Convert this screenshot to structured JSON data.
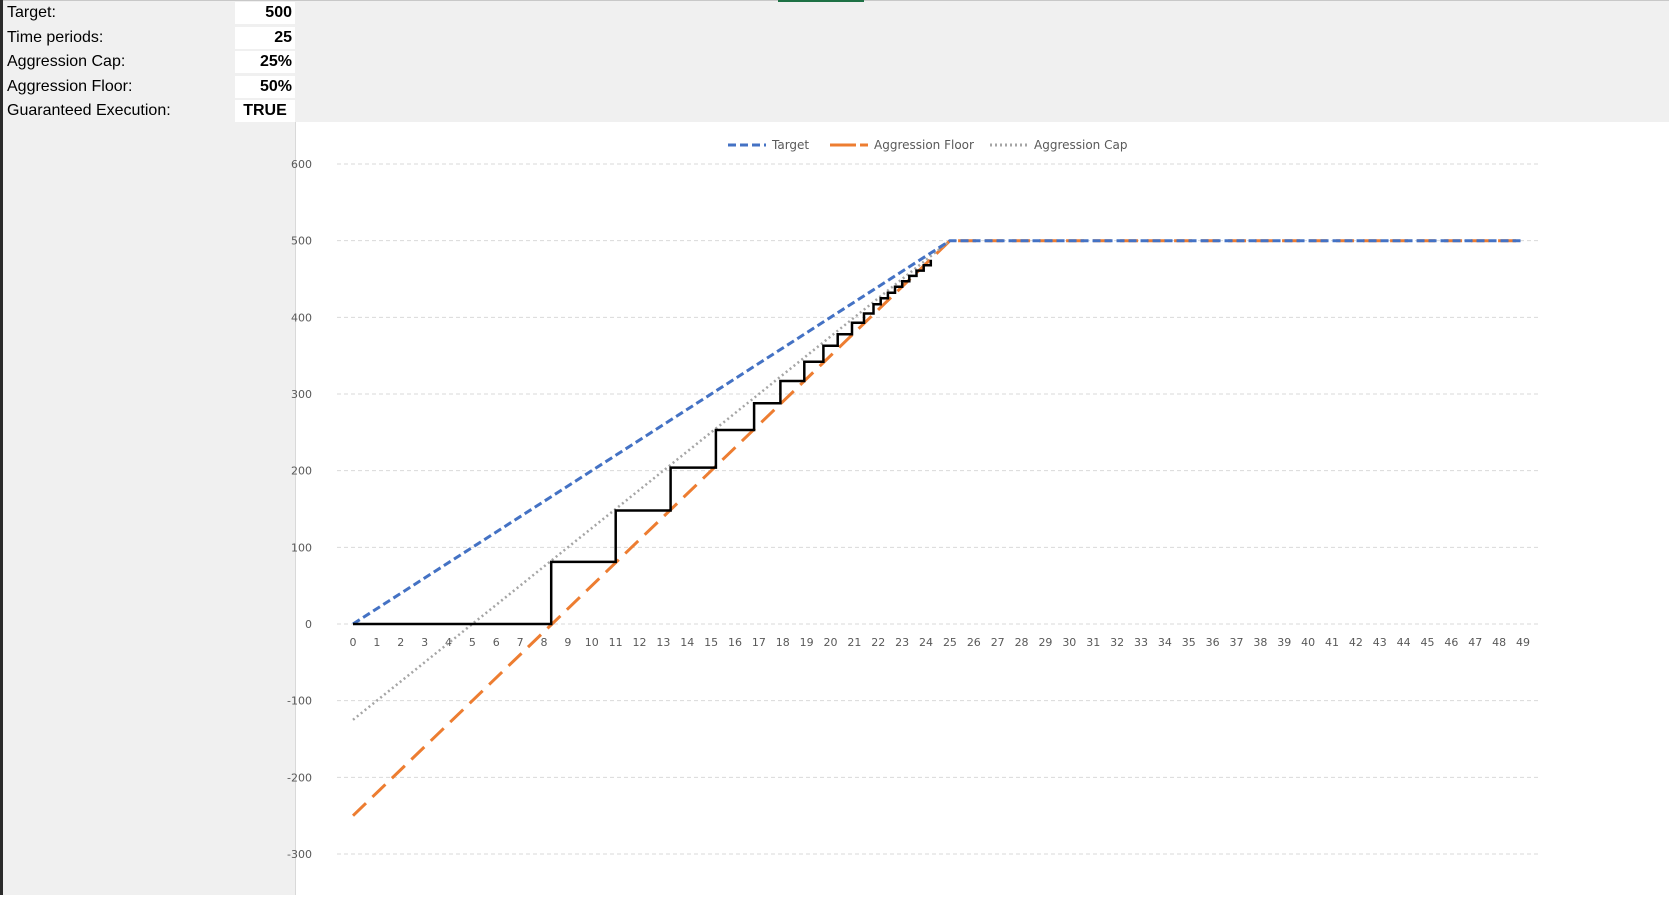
{
  "params": [
    {
      "label": "Target:",
      "value": "500"
    },
    {
      "label": "Time periods:",
      "value": "25"
    },
    {
      "label": "Aggression Cap:",
      "value": "25%"
    },
    {
      "label": "Aggression Floor:",
      "value": "50%"
    },
    {
      "label": "Guaranteed Execution:",
      "value": "TRUE"
    }
  ],
  "colors": {
    "target": "#4472c4",
    "floor": "#ed7d31",
    "cap": "#a5a5a5",
    "execution": "#000000",
    "grid": "#d9d9d9"
  },
  "chart_data": {
    "type": "line",
    "title": "",
    "xlabel": "",
    "ylabel": "",
    "ylim": [
      -300,
      600
    ],
    "yticks": [
      -300,
      -200,
      -100,
      0,
      100,
      200,
      300,
      400,
      500,
      600
    ],
    "xticks": [
      0,
      1,
      2,
      3,
      4,
      5,
      6,
      7,
      8,
      9,
      10,
      11,
      12,
      13,
      14,
      15,
      16,
      17,
      18,
      19,
      20,
      21,
      22,
      23,
      24,
      25,
      26,
      27,
      28,
      29,
      30,
      31,
      32,
      33,
      34,
      35,
      36,
      37,
      38,
      39,
      40,
      41,
      42,
      43,
      44,
      45,
      46,
      47,
      48,
      49
    ],
    "grid": "horizontal-dashed",
    "legend": "top",
    "legend_entries": [
      "Target",
      "Aggression Floor",
      "Aggression Cap"
    ],
    "series": [
      {
        "name": "Target",
        "style": "dashed",
        "points": [
          [
            0,
            0
          ],
          [
            25,
            500
          ],
          [
            49,
            500
          ]
        ]
      },
      {
        "name": "Aggression Floor",
        "style": "long-dashed",
        "points": [
          [
            0,
            -250
          ],
          [
            25,
            500
          ],
          [
            49,
            500
          ]
        ]
      },
      {
        "name": "Aggression Cap",
        "style": "dotted",
        "points": [
          [
            0,
            -125
          ],
          [
            25,
            500
          ]
        ]
      },
      {
        "style": "step",
        "points": [
          [
            0,
            0
          ],
          [
            8.3,
            0
          ],
          [
            8.3,
            81
          ],
          [
            11,
            81
          ],
          [
            11,
            148
          ],
          [
            13.3,
            148
          ],
          [
            13.3,
            204
          ],
          [
            15.2,
            204
          ],
          [
            15.2,
            253
          ],
          [
            16.8,
            253
          ],
          [
            16.8,
            288
          ],
          [
            17.9,
            288
          ],
          [
            17.9,
            317
          ],
          [
            18.9,
            317
          ],
          [
            18.9,
            342
          ],
          [
            19.7,
            342
          ],
          [
            19.7,
            363
          ],
          [
            20.3,
            363
          ],
          [
            20.3,
            378
          ],
          [
            20.9,
            378
          ],
          [
            20.9,
            393
          ],
          [
            21.4,
            393
          ],
          [
            21.4,
            405
          ],
          [
            21.8,
            405
          ],
          [
            21.8,
            417
          ],
          [
            22.1,
            417
          ],
          [
            22.1,
            425
          ],
          [
            22.4,
            425
          ],
          [
            22.4,
            432
          ],
          [
            22.7,
            432
          ],
          [
            22.7,
            440
          ],
          [
            23.0,
            440
          ],
          [
            23.0,
            447
          ],
          [
            23.3,
            447
          ],
          [
            23.3,
            454
          ],
          [
            23.6,
            454
          ],
          [
            23.6,
            461
          ],
          [
            23.9,
            461
          ],
          [
            23.9,
            468
          ],
          [
            24.2,
            468
          ],
          [
            24.2,
            475
          ]
        ]
      }
    ]
  }
}
